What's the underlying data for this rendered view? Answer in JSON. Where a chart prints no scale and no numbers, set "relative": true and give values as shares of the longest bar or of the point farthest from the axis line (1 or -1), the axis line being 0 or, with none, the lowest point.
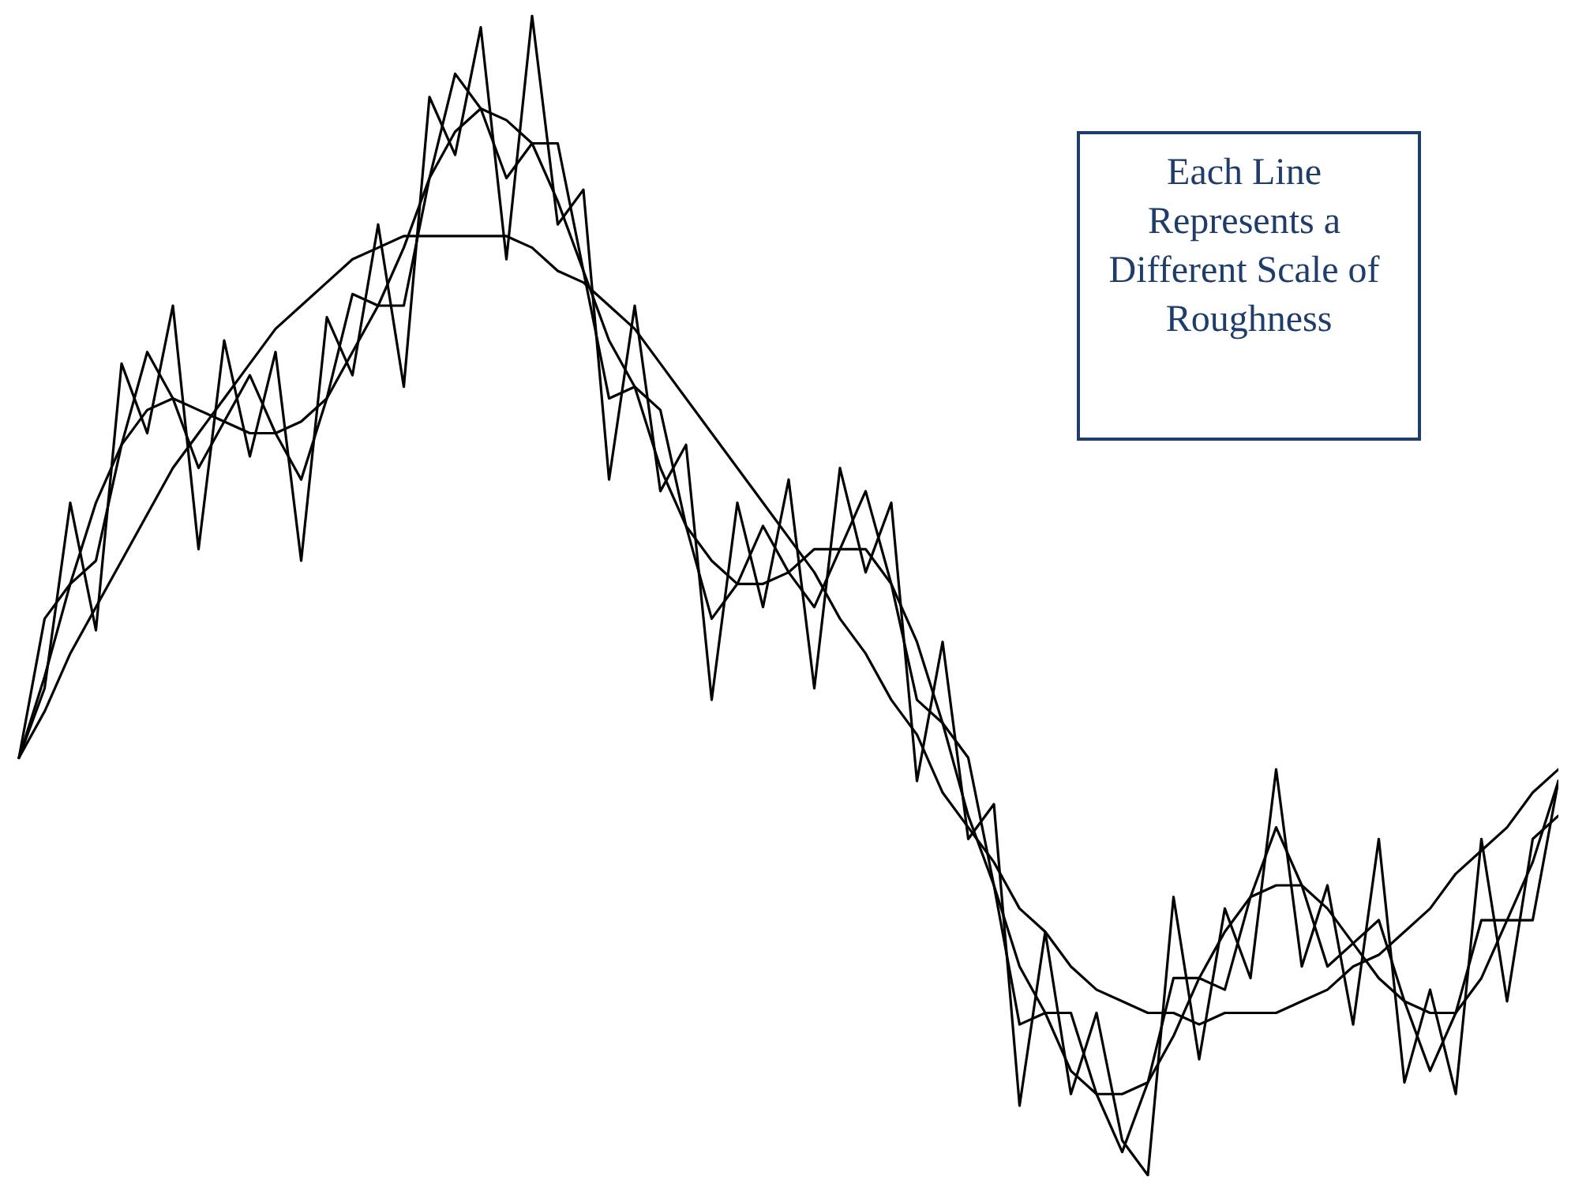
{
  "chart_data": {
    "type": "line",
    "relative": true,
    "marker": "none",
    "line_style": "solid",
    "categories": [
      null,
      null,
      null,
      null,
      null,
      null,
      null,
      null,
      null,
      null,
      null,
      null,
      null,
      null,
      null,
      null,
      null,
      null,
      null,
      null,
      null,
      null,
      null,
      null,
      null,
      null,
      null,
      null,
      null,
      null,
      null,
      null,
      null,
      null,
      null,
      null,
      null,
      null,
      null,
      null,
      null,
      null,
      null,
      null,
      null,
      null,
      null,
      null,
      null,
      null,
      null,
      null,
      null,
      null,
      null,
      null,
      null,
      null,
      null,
      null,
      null
    ],
    "series": [
      {
        "color": "#000000",
        "values": [
          0.36,
          0.4,
          0.45,
          0.49,
          0.53,
          0.57,
          0.61,
          0.64,
          0.67,
          0.7,
          0.73,
          0.75,
          0.77,
          0.79,
          0.8,
          0.81,
          0.81,
          0.81,
          0.81,
          0.81,
          0.8,
          0.78,
          0.77,
          0.75,
          0.73,
          0.7,
          0.67,
          0.64,
          0.61,
          0.58,
          0.55,
          0.52,
          0.48,
          0.45,
          0.41,
          0.38,
          0.33,
          0.3,
          0.27,
          0.23,
          0.21,
          0.18,
          0.16,
          0.15,
          0.14,
          0.14,
          0.13,
          0.14,
          0.14,
          0.14,
          0.15,
          0.16,
          0.18,
          0.19,
          0.21,
          0.23,
          0.26,
          0.28,
          0.3,
          0.33,
          0.35
        ]
      },
      {
        "color": "#000000",
        "values": [
          0.36,
          0.43,
          0.51,
          0.58,
          0.63,
          0.66,
          0.67,
          0.66,
          0.65,
          0.64,
          0.64,
          0.65,
          0.67,
          0.71,
          0.75,
          0.8,
          0.86,
          0.9,
          0.92,
          0.91,
          0.89,
          0.84,
          0.78,
          0.72,
          0.68,
          0.61,
          0.56,
          0.53,
          0.51,
          0.51,
          0.52,
          0.54,
          0.54,
          0.54,
          0.51,
          0.46,
          0.39,
          0.31,
          0.25,
          0.18,
          0.14,
          0.09,
          0.07,
          0.07,
          0.08,
          0.12,
          0.17,
          0.21,
          0.24,
          0.25,
          0.25,
          0.23,
          0.2,
          0.17,
          0.15,
          0.14,
          0.14,
          0.17,
          0.22,
          0.27,
          0.34
        ]
      },
      {
        "color": "#000000",
        "values": [
          0.36,
          0.48,
          0.51,
          0.53,
          0.63,
          0.71,
          0.67,
          0.61,
          0.65,
          0.69,
          0.64,
          0.6,
          0.67,
          0.76,
          0.75,
          0.75,
          0.86,
          0.95,
          0.92,
          0.86,
          0.89,
          0.89,
          0.78,
          0.67,
          0.68,
          0.66,
          0.56,
          0.48,
          0.51,
          0.56,
          0.52,
          0.49,
          0.54,
          0.59,
          0.51,
          0.41,
          0.39,
          0.36,
          0.25,
          0.13,
          0.14,
          0.14,
          0.07,
          0.02,
          0.08,
          0.17,
          0.17,
          0.16,
          0.24,
          0.3,
          0.25,
          0.18,
          0.2,
          0.22,
          0.15,
          0.09,
          0.14,
          0.22,
          0.22,
          0.22,
          0.34
        ]
      },
      {
        "color": "#000000",
        "values": [
          0.36,
          0.42,
          0.58,
          0.47,
          0.7,
          0.64,
          0.75,
          0.54,
          0.72,
          0.62,
          0.71,
          0.53,
          0.74,
          0.69,
          0.82,
          0.68,
          0.93,
          0.88,
          0.99,
          0.79,
          1.0,
          0.82,
          0.85,
          0.6,
          0.75,
          0.59,
          0.63,
          0.41,
          0.58,
          0.49,
          0.6,
          0.42,
          0.61,
          0.52,
          0.58,
          0.34,
          0.46,
          0.29,
          0.32,
          0.06,
          0.21,
          0.07,
          0.14,
          0.03,
          0.0,
          0.24,
          0.1,
          0.23,
          0.17,
          0.35,
          0.18,
          0.25,
          0.13,
          0.29,
          0.08,
          0.16,
          0.07,
          0.29,
          0.15,
          0.29,
          0.31
        ]
      }
    ],
    "annotations": [
      "Each Line Represents a Different Scale of Roughness"
    ]
  }
}
